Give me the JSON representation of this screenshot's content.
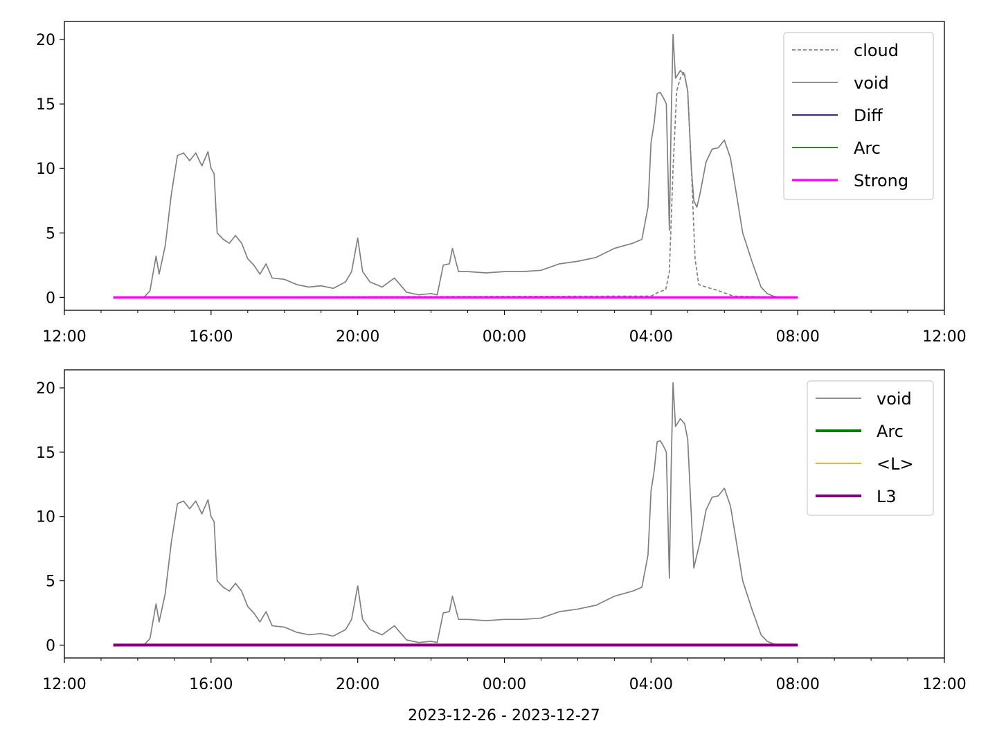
{
  "chart_data": [
    {
      "type": "line",
      "xlim": [
        "2023-12-26T12:00",
        "2023-12-27T12:00"
      ],
      "ylim": [
        -1,
        21.4
      ],
      "yticks": [
        0,
        5,
        10,
        15,
        20
      ],
      "ytick_labels": [
        "0",
        "5",
        "10",
        "15",
        "20"
      ],
      "xtick_labels": [
        "12:00",
        "16:00",
        "20:00",
        "00:00",
        "04:00",
        "08:00",
        "12:00"
      ],
      "xlabel": "",
      "grid": false,
      "legend_position": "top-right",
      "legend": [
        "cloud",
        "void",
        "Diff",
        "Arc",
        "Strong"
      ],
      "series": [
        {
          "name": "cloud",
          "color": "#808080",
          "style": "dashed",
          "points": [
            [
              "2023-12-26T13:20",
              0
            ],
            [
              "2023-12-26T20:00",
              0.05
            ],
            [
              "2023-12-27T04:00",
              0.1
            ],
            [
              "2023-12-27T04:12",
              0.4
            ],
            [
              "2023-12-27T04:24",
              0.6
            ],
            [
              "2023-12-27T04:30",
              2
            ],
            [
              "2023-12-27T04:36",
              10
            ],
            [
              "2023-12-27T04:42",
              16
            ],
            [
              "2023-12-27T04:48",
              17
            ],
            [
              "2023-12-27T04:54",
              17.5
            ],
            [
              "2023-12-27T05:00",
              16
            ],
            [
              "2023-12-27T05:06",
              10
            ],
            [
              "2023-12-27T05:12",
              3
            ],
            [
              "2023-12-27T05:18",
              1
            ],
            [
              "2023-12-27T05:30",
              0.8
            ],
            [
              "2023-12-27T05:45",
              0.6
            ],
            [
              "2023-12-27T06:00",
              0.35
            ],
            [
              "2023-12-27T06:15",
              0.1
            ],
            [
              "2023-12-27T07:00",
              0.05
            ],
            [
              "2023-12-27T08:00",
              0
            ]
          ]
        },
        {
          "name": "void",
          "color": "#808080",
          "style": "solid",
          "points": [
            [
              "2023-12-26T13:20",
              0
            ],
            [
              "2023-12-26T14:10",
              0
            ],
            [
              "2023-12-26T14:20",
              0.5
            ],
            [
              "2023-12-26T14:30",
              3.2
            ],
            [
              "2023-12-26T14:35",
              1.8
            ],
            [
              "2023-12-26T14:45",
              4
            ],
            [
              "2023-12-26T14:55",
              8
            ],
            [
              "2023-12-26T15:05",
              11
            ],
            [
              "2023-12-26T15:15",
              11.2
            ],
            [
              "2023-12-26T15:25",
              10.6
            ],
            [
              "2023-12-26T15:35",
              11.2
            ],
            [
              "2023-12-26T15:45",
              10.2
            ],
            [
              "2023-12-26T15:55",
              11.3
            ],
            [
              "2023-12-26T16:00",
              10
            ],
            [
              "2023-12-26T16:05",
              9.6
            ],
            [
              "2023-12-26T16:10",
              5
            ],
            [
              "2023-12-26T16:20",
              4.5
            ],
            [
              "2023-12-26T16:30",
              4.2
            ],
            [
              "2023-12-26T16:40",
              4.8
            ],
            [
              "2023-12-26T16:50",
              4.2
            ],
            [
              "2023-12-26T17:00",
              3
            ],
            [
              "2023-12-26T17:10",
              2.5
            ],
            [
              "2023-12-26T17:20",
              1.8
            ],
            [
              "2023-12-26T17:30",
              2.6
            ],
            [
              "2023-12-26T17:40",
              1.5
            ],
            [
              "2023-12-26T18:00",
              1.4
            ],
            [
              "2023-12-26T18:20",
              1
            ],
            [
              "2023-12-26T18:40",
              0.8
            ],
            [
              "2023-12-26T19:00",
              0.9
            ],
            [
              "2023-12-26T19:20",
              0.7
            ],
            [
              "2023-12-26T19:40",
              1.2
            ],
            [
              "2023-12-26T19:50",
              2
            ],
            [
              "2023-12-26T20:00",
              4.6
            ],
            [
              "2023-12-26T20:08",
              2
            ],
            [
              "2023-12-26T20:20",
              1.2
            ],
            [
              "2023-12-26T20:40",
              0.8
            ],
            [
              "2023-12-26T21:00",
              1.5
            ],
            [
              "2023-12-26T21:20",
              0.4
            ],
            [
              "2023-12-26T21:40",
              0.2
            ],
            [
              "2023-12-26T22:00",
              0.3
            ],
            [
              "2023-12-26T22:10",
              0.2
            ],
            [
              "2023-12-26T22:20",
              2.5
            ],
            [
              "2023-12-26T22:30",
              2.6
            ],
            [
              "2023-12-26T22:35",
              3.8
            ],
            [
              "2023-12-26T22:45",
              2
            ],
            [
              "2023-12-26T23:00",
              2
            ],
            [
              "2023-12-26T23:30",
              1.9
            ],
            [
              "2023-12-27T00:00",
              2
            ],
            [
              "2023-12-27T00:30",
              2
            ],
            [
              "2023-12-27T01:00",
              2.1
            ],
            [
              "2023-12-27T01:30",
              2.6
            ],
            [
              "2023-12-27T02:00",
              2.8
            ],
            [
              "2023-12-27T02:30",
              3.1
            ],
            [
              "2023-12-27T03:00",
              3.8
            ],
            [
              "2023-12-27T03:30",
              4.2
            ],
            [
              "2023-12-27T03:45",
              4.5
            ],
            [
              "2023-12-27T03:55",
              7
            ],
            [
              "2023-12-27T04:00",
              12
            ],
            [
              "2023-12-27T04:05",
              13.5
            ],
            [
              "2023-12-27T04:10",
              15.8
            ],
            [
              "2023-12-27T04:15",
              15.9
            ],
            [
              "2023-12-27T04:20",
              15.5
            ],
            [
              "2023-12-27T04:25",
              15
            ],
            [
              "2023-12-27T04:30",
              5.2
            ],
            [
              "2023-12-27T04:33",
              14
            ],
            [
              "2023-12-27T04:36",
              20.4
            ],
            [
              "2023-12-27T04:40",
              17
            ],
            [
              "2023-12-27T04:48",
              17.6
            ],
            [
              "2023-12-27T04:55",
              17.2
            ],
            [
              "2023-12-27T05:00",
              16
            ],
            [
              "2023-12-27T05:06",
              10
            ],
            [
              "2023-12-27T05:10",
              7.5
            ],
            [
              "2023-12-27T05:15",
              7
            ],
            [
              "2023-12-27T05:20",
              8
            ],
            [
              "2023-12-27T05:30",
              10.5
            ],
            [
              "2023-12-27T05:40",
              11.5
            ],
            [
              "2023-12-27T05:50",
              11.6
            ],
            [
              "2023-12-27T06:00",
              12.2
            ],
            [
              "2023-12-27T06:10",
              10.8
            ],
            [
              "2023-12-27T06:18",
              8.5
            ],
            [
              "2023-12-27T06:30",
              5
            ],
            [
              "2023-12-27T06:45",
              2.8
            ],
            [
              "2023-12-27T07:00",
              0.8
            ],
            [
              "2023-12-27T07:10",
              0.3
            ],
            [
              "2023-12-27T07:20",
              0.1
            ],
            [
              "2023-12-27T07:30",
              0
            ],
            [
              "2023-12-27T08:00",
              0
            ]
          ]
        },
        {
          "name": "Diff",
          "color": "#0000ff",
          "style": "solid",
          "points": [
            [
              "2023-12-26T13:20",
              0
            ],
            [
              "2023-12-27T08:00",
              0
            ]
          ]
        },
        {
          "name": "Arc",
          "color": "#008000",
          "style": "solid",
          "points": [
            [
              "2023-12-26T13:20",
              0
            ],
            [
              "2023-12-27T08:00",
              0
            ]
          ]
        },
        {
          "name": "Strong",
          "color": "#ff00ff",
          "style": "solid",
          "points": [
            [
              "2023-12-26T13:20",
              0
            ],
            [
              "2023-12-27T08:00",
              0
            ]
          ]
        }
      ]
    },
    {
      "type": "line",
      "xlim": [
        "2023-12-26T12:00",
        "2023-12-27T12:00"
      ],
      "ylim": [
        -1,
        21.4
      ],
      "yticks": [
        0,
        5,
        10,
        15,
        20
      ],
      "ytick_labels": [
        "0",
        "5",
        "10",
        "15",
        "20"
      ],
      "xtick_labels": [
        "12:00",
        "16:00",
        "20:00",
        "00:00",
        "04:00",
        "08:00",
        "12:00"
      ],
      "xlabel": "2023-12-26 - 2023-12-27",
      "grid": false,
      "legend_position": "top-right",
      "legend": [
        "void",
        "Arc",
        "<L>",
        "L3"
      ],
      "series": [
        {
          "name": "void",
          "color": "#808080",
          "style": "solid",
          "points": [
            [
              "2023-12-26T13:20",
              0
            ],
            [
              "2023-12-26T14:10",
              0
            ],
            [
              "2023-12-26T14:20",
              0.5
            ],
            [
              "2023-12-26T14:30",
              3.2
            ],
            [
              "2023-12-26T14:35",
              1.8
            ],
            [
              "2023-12-26T14:45",
              4
            ],
            [
              "2023-12-26T14:55",
              8
            ],
            [
              "2023-12-26T15:05",
              11
            ],
            [
              "2023-12-26T15:15",
              11.2
            ],
            [
              "2023-12-26T15:25",
              10.6
            ],
            [
              "2023-12-26T15:35",
              11.2
            ],
            [
              "2023-12-26T15:45",
              10.2
            ],
            [
              "2023-12-26T15:55",
              11.3
            ],
            [
              "2023-12-26T16:00",
              10
            ],
            [
              "2023-12-26T16:05",
              9.6
            ],
            [
              "2023-12-26T16:10",
              5
            ],
            [
              "2023-12-26T16:20",
              4.5
            ],
            [
              "2023-12-26T16:30",
              4.2
            ],
            [
              "2023-12-26T16:40",
              4.8
            ],
            [
              "2023-12-26T16:50",
              4.2
            ],
            [
              "2023-12-26T17:00",
              3
            ],
            [
              "2023-12-26T17:10",
              2.5
            ],
            [
              "2023-12-26T17:20",
              1.8
            ],
            [
              "2023-12-26T17:30",
              2.6
            ],
            [
              "2023-12-26T17:40",
              1.5
            ],
            [
              "2023-12-26T18:00",
              1.4
            ],
            [
              "2023-12-26T18:20",
              1
            ],
            [
              "2023-12-26T18:40",
              0.8
            ],
            [
              "2023-12-26T19:00",
              0.9
            ],
            [
              "2023-12-26T19:20",
              0.7
            ],
            [
              "2023-12-26T19:40",
              1.2
            ],
            [
              "2023-12-26T19:50",
              2
            ],
            [
              "2023-12-26T20:00",
              4.6
            ],
            [
              "2023-12-26T20:08",
              2
            ],
            [
              "2023-12-26T20:20",
              1.2
            ],
            [
              "2023-12-26T20:40",
              0.8
            ],
            [
              "2023-12-26T21:00",
              1.5
            ],
            [
              "2023-12-26T21:20",
              0.4
            ],
            [
              "2023-12-26T21:40",
              0.2
            ],
            [
              "2023-12-26T22:00",
              0.3
            ],
            [
              "2023-12-26T22:10",
              0.2
            ],
            [
              "2023-12-26T22:20",
              2.5
            ],
            [
              "2023-12-26T22:30",
              2.6
            ],
            [
              "2023-12-26T22:35",
              3.8
            ],
            [
              "2023-12-26T22:45",
              2
            ],
            [
              "2023-12-26T23:00",
              2
            ],
            [
              "2023-12-26T23:30",
              1.9
            ],
            [
              "2023-12-27T00:00",
              2
            ],
            [
              "2023-12-27T00:30",
              2
            ],
            [
              "2023-12-27T01:00",
              2.1
            ],
            [
              "2023-12-27T01:30",
              2.6
            ],
            [
              "2023-12-27T02:00",
              2.8
            ],
            [
              "2023-12-27T02:30",
              3.1
            ],
            [
              "2023-12-27T03:00",
              3.8
            ],
            [
              "2023-12-27T03:30",
              4.2
            ],
            [
              "2023-12-27T03:45",
              4.5
            ],
            [
              "2023-12-27T03:55",
              7
            ],
            [
              "2023-12-27T04:00",
              12
            ],
            [
              "2023-12-27T04:05",
              13.5
            ],
            [
              "2023-12-27T04:10",
              15.8
            ],
            [
              "2023-12-27T04:15",
              15.9
            ],
            [
              "2023-12-27T04:20",
              15.5
            ],
            [
              "2023-12-27T04:25",
              15
            ],
            [
              "2023-12-27T04:30",
              5.2
            ],
            [
              "2023-12-27T04:33",
              14
            ],
            [
              "2023-12-27T04:36",
              20.4
            ],
            [
              "2023-12-27T04:40",
              17
            ],
            [
              "2023-12-27T04:48",
              17.6
            ],
            [
              "2023-12-27T04:55",
              17.2
            ],
            [
              "2023-12-27T05:00",
              16
            ],
            [
              "2023-12-27T05:06",
              10
            ],
            [
              "2023-12-27T05:10",
              6
            ],
            [
              "2023-12-27T05:15",
              7
            ],
            [
              "2023-12-27T05:20",
              8
            ],
            [
              "2023-12-27T05:30",
              10.5
            ],
            [
              "2023-12-27T05:40",
              11.5
            ],
            [
              "2023-12-27T05:50",
              11.6
            ],
            [
              "2023-12-27T06:00",
              12.2
            ],
            [
              "2023-12-27T06:10",
              10.8
            ],
            [
              "2023-12-27T06:18",
              8.5
            ],
            [
              "2023-12-27T06:30",
              5
            ],
            [
              "2023-12-27T06:45",
              2.8
            ],
            [
              "2023-12-27T07:00",
              0.8
            ],
            [
              "2023-12-27T07:10",
              0.3
            ],
            [
              "2023-12-27T07:20",
              0.1
            ],
            [
              "2023-12-27T07:30",
              0
            ],
            [
              "2023-12-27T08:00",
              0
            ]
          ]
        },
        {
          "name": "Arc",
          "color": "#008000",
          "style": "solid",
          "points": [
            [
              "2023-12-26T13:20",
              0
            ],
            [
              "2023-12-27T08:00",
              0
            ]
          ]
        },
        {
          "name": "<L>",
          "color": "#ffa500",
          "style": "solid",
          "points": [
            [
              "2023-12-26T13:20",
              0
            ],
            [
              "2023-12-27T08:00",
              0
            ]
          ]
        },
        {
          "name": "L3",
          "color": "#800080",
          "style": "solid",
          "points": [
            [
              "2023-12-26T13:20",
              0
            ],
            [
              "2023-12-27T08:00",
              0
            ]
          ]
        }
      ]
    }
  ]
}
